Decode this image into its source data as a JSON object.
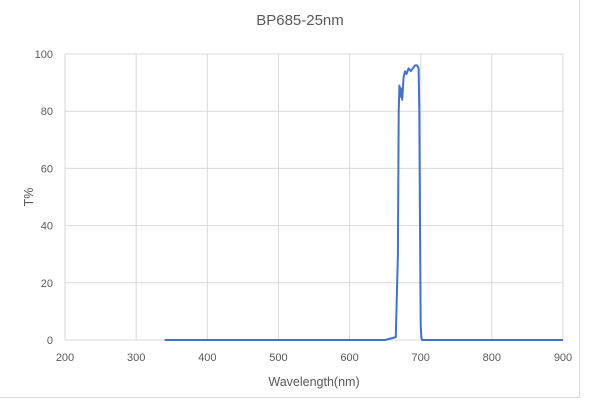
{
  "chart_data": {
    "type": "line",
    "title": "BP685-25nm",
    "xlabel": "Wavelength(nm)",
    "ylabel": "T%",
    "xlim": [
      200,
      900
    ],
    "ylim": [
      0,
      100
    ],
    "x_ticks": [
      200,
      300,
      400,
      500,
      600,
      700,
      800,
      900
    ],
    "y_ticks": [
      0,
      20,
      40,
      60,
      80,
      100
    ],
    "grid": true,
    "legend": null,
    "series": [
      {
        "name": "BP685-25nm",
        "color": "#4472c4",
        "x": [
          340,
          400,
          500,
          600,
          650,
          665,
          668,
          669,
          670,
          671,
          672,
          674,
          676,
          678,
          680,
          683,
          686,
          689,
          692,
          695,
          697,
          698,
          699,
          700,
          701,
          702,
          705,
          750,
          800,
          900
        ],
        "y": [
          0,
          0,
          0,
          0,
          0,
          1,
          30,
          80,
          89,
          85,
          88,
          84,
          92,
          94,
          93,
          95,
          94,
          95,
          96,
          96,
          95,
          80,
          40,
          5,
          1,
          0,
          0,
          0,
          0,
          0
        ]
      }
    ]
  }
}
